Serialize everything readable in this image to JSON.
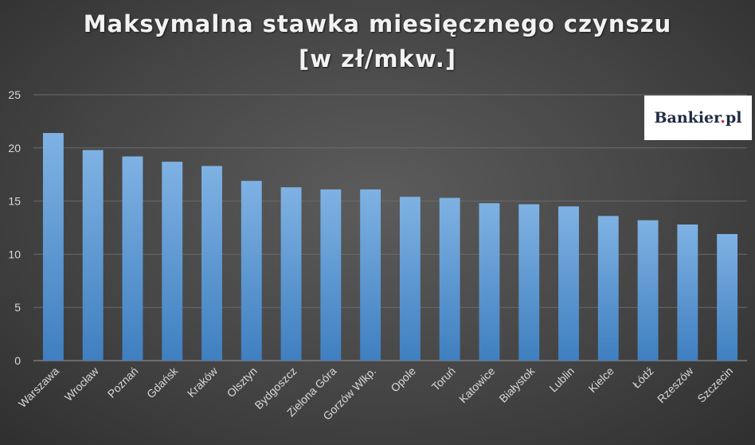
{
  "title": {
    "line1": "Maksymalna stawka miesięcznego czynszu",
    "line2": "[w zł/mkw.]"
  },
  "logo": {
    "text_main": "Bankier",
    "text_dot": ".",
    "text_tail": "pl"
  },
  "chart_data": {
    "type": "bar",
    "title": "Maksymalna stawka miesięcznego czynszu [w zł/mkw.]",
    "categories": [
      "Warszawa",
      "Wrocław",
      "Poznań",
      "Gdańsk",
      "Kraków",
      "Olsztyn",
      "Bydgoszcz",
      "Zielona Góra",
      "Gorzów Wlkp.",
      "Opole",
      "Toruń",
      "Katowice",
      "Białystok",
      "Lublin",
      "Kielce",
      "Łódź",
      "Rzeszów",
      "Szczecin"
    ],
    "values": [
      21.4,
      19.8,
      19.2,
      18.7,
      18.3,
      16.9,
      16.3,
      16.1,
      16.1,
      15.4,
      15.3,
      14.8,
      14.7,
      14.5,
      13.6,
      13.2,
      12.8,
      11.9
    ],
    "ylim": [
      0,
      25
    ],
    "yticks": [
      0,
      5,
      10,
      15,
      20,
      25
    ],
    "grid": true,
    "bar_color": "#5b9bd5"
  }
}
